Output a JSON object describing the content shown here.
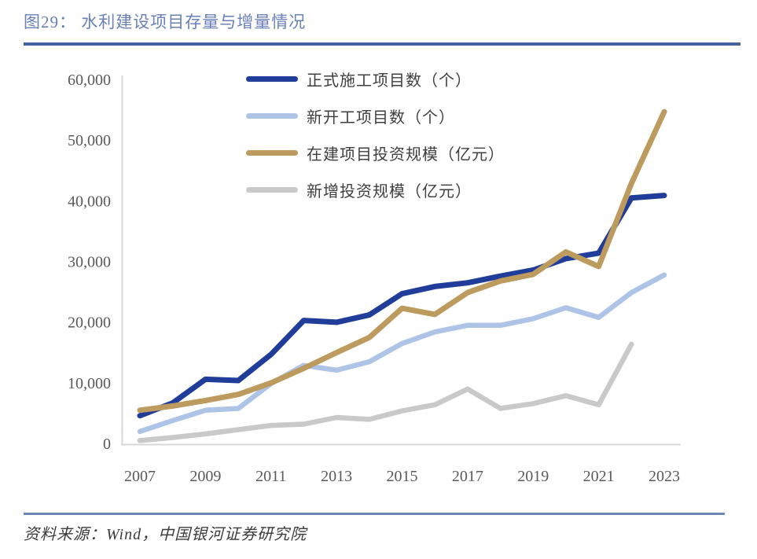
{
  "title": "图29：  水利建设项目存量与增量情况",
  "source_note": "资料来源：Wind，中国银河证券研究院",
  "colors": {
    "title_text": "#6980b9",
    "title_rule": "#44639c",
    "source_rule": "#6d88b5",
    "axis": "#d7d7d7",
    "tick_text": "#595959",
    "legend_text": "#3f3f3f"
  },
  "chart_data": {
    "type": "line",
    "title": "水利建设项目存量与增量情况",
    "xlabel": "",
    "ylabel": "",
    "grid": false,
    "legend_position": "upper-center-inside",
    "x": [
      2007,
      2008,
      2009,
      2010,
      2011,
      2012,
      2013,
      2014,
      2015,
      2016,
      2017,
      2018,
      2019,
      2020,
      2021,
      2022,
      2023
    ],
    "x_tick_labels": [
      "2007",
      "2009",
      "2011",
      "2013",
      "2015",
      "2017",
      "2019",
      "2021",
      "2023"
    ],
    "ylim": [
      0,
      60000
    ],
    "y_ticks": [
      0,
      10000,
      20000,
      30000,
      40000,
      50000,
      60000
    ],
    "y_tick_labels": [
      "0",
      "10,000",
      "20,000",
      "30,000",
      "40,000",
      "50,000",
      "60,000"
    ],
    "series": [
      {
        "name": "正式施工项目数（个）",
        "color": "#1f3d99",
        "stroke_width": 7,
        "values": [
          4700,
          6800,
          10700,
          10500,
          14800,
          20400,
          20100,
          21300,
          24800,
          26000,
          26600,
          27700,
          28700,
          30600,
          31500,
          40600,
          41000
        ]
      },
      {
        "name": "新开工项目数（个）",
        "color": "#adc4e7",
        "stroke_width": 6.5,
        "values": [
          2100,
          3900,
          5600,
          5900,
          10000,
          13000,
          12200,
          13600,
          16600,
          18500,
          19600,
          19600,
          20700,
          22500,
          20900,
          25000,
          27900
        ]
      },
      {
        "name": "在建项目投资规模（亿元）",
        "color": "#bd9a5e",
        "stroke_width": 7,
        "values": [
          5600,
          6300,
          7200,
          8200,
          10100,
          12500,
          15100,
          17600,
          22400,
          21400,
          25000,
          26900,
          28000,
          31700,
          29300,
          43000,
          54800
        ]
      },
      {
        "name": "新增投资规模（亿元）",
        "color": "#c9c9c9",
        "stroke_width": 6.5,
        "values": [
          600,
          1100,
          1700,
          2400,
          3100,
          3300,
          4400,
          4100,
          5500,
          6500,
          9100,
          5900,
          6700,
          8000,
          6500,
          16500,
          null
        ]
      }
    ]
  }
}
